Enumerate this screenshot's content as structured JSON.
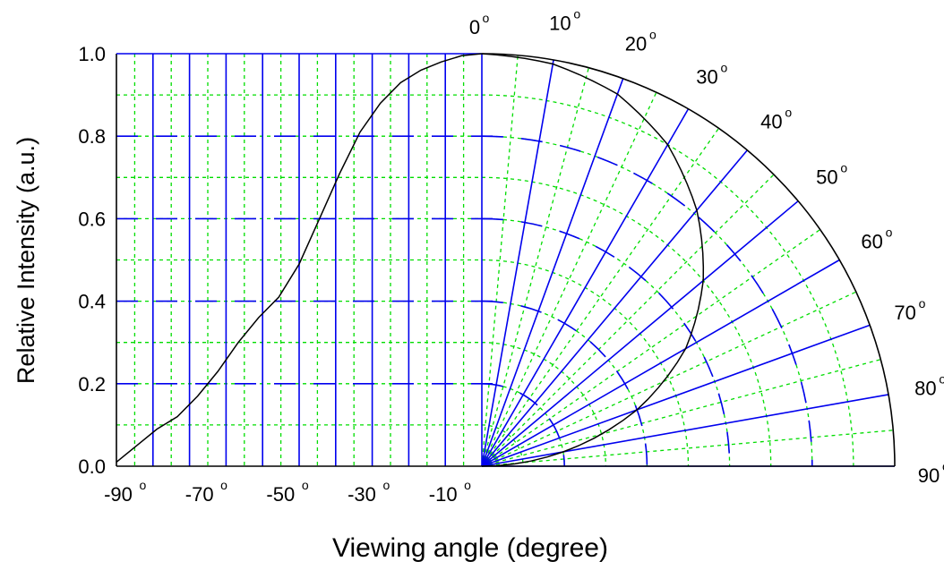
{
  "chart_data": {
    "type": "line",
    "title": "",
    "xlabel": "Viewing angle (degree)",
    "ylabel": "Relative Intensity (a.u.)",
    "ylim": [
      0,
      1
    ],
    "xlim": [
      -90,
      0
    ],
    "y_ticks": [
      "0.0",
      "0.2",
      "0.4",
      "0.6",
      "0.8",
      "1.0"
    ],
    "x_ticks": [
      {
        "value": -90,
        "label": "-90"
      },
      {
        "value": -70,
        "label": "-70"
      },
      {
        "value": -50,
        "label": "-50"
      },
      {
        "value": -30,
        "label": "-30"
      },
      {
        "value": -10,
        "label": "-10"
      }
    ],
    "polar_labels": [
      {
        "angle": 0,
        "label": "0"
      },
      {
        "angle": 10,
        "label": "10"
      },
      {
        "angle": 20,
        "label": "20"
      },
      {
        "angle": 30,
        "label": "30"
      },
      {
        "angle": 40,
        "label": "40"
      },
      {
        "angle": 50,
        "label": "50"
      },
      {
        "angle": 60,
        "label": "60"
      },
      {
        "angle": 70,
        "label": "70"
      },
      {
        "angle": 80,
        "label": "80"
      },
      {
        "angle": 90,
        "label": "90"
      }
    ],
    "degree_symbol": "o",
    "series": [
      {
        "x": [
          -90,
          -85,
          -80,
          -75,
          -70,
          -65,
          -60,
          -55,
          -50,
          -45,
          -40,
          -35,
          -30,
          -25,
          -20,
          -15,
          -10,
          -5,
          0
        ],
        "values": [
          0.01,
          0.05,
          0.09,
          0.12,
          0.17,
          0.23,
          0.3,
          0.36,
          0.41,
          0.49,
          0.6,
          0.71,
          0.81,
          0.88,
          0.93,
          0.96,
          0.98,
          0.995,
          1.0
        ]
      }
    ],
    "polar_intensity": {
      "angles": [
        0,
        10,
        20,
        30,
        40,
        50,
        60,
        70,
        80,
        90
      ],
      "values": [
        1.0,
        0.99,
        0.96,
        0.9,
        0.81,
        0.7,
        0.57,
        0.4,
        0.2,
        0.0
      ]
    },
    "grid": true,
    "colors": {
      "major_grid": "#0000ee",
      "minor_grid": "#00dd00",
      "curve": "#000000"
    }
  }
}
